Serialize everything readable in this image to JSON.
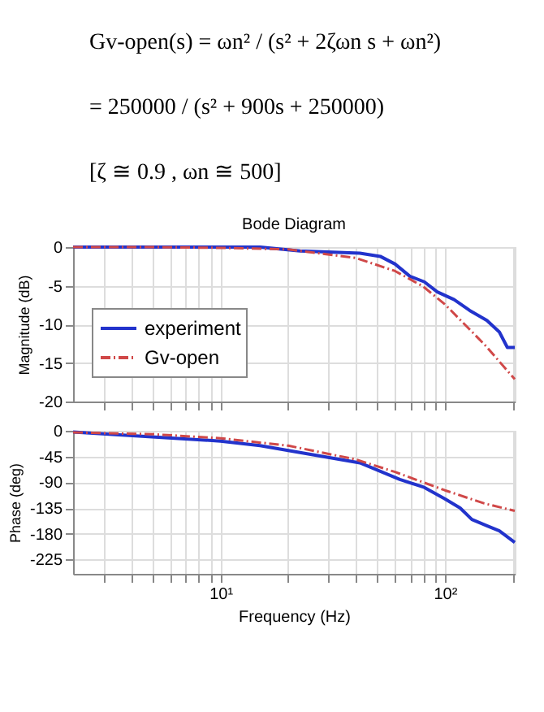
{
  "chart_data": [
    {
      "type": "line",
      "title": "Bode Diagram",
      "ylabel": "Magnitude (dB)",
      "annotations": [
        "Gv-open(s) = ωn² / (s² + 2ζωn s + ωn²)",
        "= 250000 / (s² + 900s + 250000)",
        "[ζ ≅ 0.9 ,  ωn ≅ 500]"
      ],
      "series": [
        {
          "name": "experiment",
          "color": "#2233cc",
          "line_style": "solid",
          "x": [
            2.2,
            10,
            15,
            22.6,
            41.8,
            51.5,
            60,
            70,
            81,
            92.5,
            110,
            129,
            154,
            175,
            190,
            205
          ],
          "values": [
            0,
            0,
            0,
            -0.5,
            -0.8,
            -1.2,
            -2.2,
            -3.8,
            -4.5,
            -5.8,
            -6.8,
            -8.2,
            -9.5,
            -11,
            -13,
            -13
          ]
        },
        {
          "name": "Gv-open",
          "color": "#d04848",
          "line_style": "dashed",
          "x": [
            2.2,
            5,
            10,
            20,
            40,
            60,
            80,
            100,
            150,
            205
          ],
          "values": [
            0,
            0,
            -0.1,
            -0.3,
            -1.4,
            -3.1,
            -5.1,
            -7.4,
            -12.6,
            -17.1
          ]
        }
      ],
      "xlim": [
        2.2,
        205
      ],
      "xticks": [
        {
          "value": 3,
          "label": null
        },
        {
          "value": 4,
          "label": null
        },
        {
          "value": 5,
          "label": null
        },
        {
          "value": 6,
          "label": null
        },
        {
          "value": 7,
          "label": null
        },
        {
          "value": 8,
          "label": null
        },
        {
          "value": 9,
          "label": null
        },
        {
          "value": 10,
          "label": null
        },
        {
          "value": 20,
          "label": null
        },
        {
          "value": 30,
          "label": null
        },
        {
          "value": 40,
          "label": null
        },
        {
          "value": 50,
          "label": null
        },
        {
          "value": 60,
          "label": null
        },
        {
          "value": 70,
          "label": null
        },
        {
          "value": 80,
          "label": null
        },
        {
          "value": 90,
          "label": null
        },
        {
          "value": 100,
          "label": null
        },
        {
          "value": 200,
          "label": null
        }
      ],
      "ylim": [
        -20,
        0
      ],
      "yticks": [
        -20,
        -15,
        -10,
        -5,
        0
      ],
      "log": "x",
      "grid": true,
      "legend": "left",
      "tick_labels": "y"
    },
    {
      "type": "line",
      "xlabel": "Frequency (Hz)",
      "ylabel": "Phase (deg)",
      "series": [
        {
          "color": "#2233cc",
          "line_style": "solid",
          "x": [
            2.2,
            10,
            15,
            22.6,
            41.8,
            63,
            81,
            100,
            117,
            132,
            154,
            175,
            205
          ],
          "values": [
            -2,
            -18,
            -26,
            -38,
            -56,
            -85,
            -99,
            -119,
            -135,
            -155,
            -166,
            -175,
            -195
          ]
        },
        {
          "color": "#d04848",
          "line_style": "dashed",
          "x": [
            2.2,
            5,
            10,
            20,
            40,
            60,
            80,
            100,
            150,
            205
          ],
          "values": [
            -3,
            -6,
            -13,
            -26,
            -50,
            -72,
            -90,
            -104,
            -127,
            -140
          ]
        }
      ],
      "xlim": [
        2.2,
        205
      ],
      "xticks": [
        {
          "value": 3,
          "label": null
        },
        {
          "value": 4,
          "label": null
        },
        {
          "value": 5,
          "label": null
        },
        {
          "value": 6,
          "label": null
        },
        {
          "value": 7,
          "label": null
        },
        {
          "value": 8,
          "label": null
        },
        {
          "value": 9,
          "label": null
        },
        {
          "value": 10,
          "label": "10¹"
        },
        {
          "value": 20,
          "label": null
        },
        {
          "value": 30,
          "label": null
        },
        {
          "value": 40,
          "label": null
        },
        {
          "value": 50,
          "label": null
        },
        {
          "value": 60,
          "label": null
        },
        {
          "value": 70,
          "label": null
        },
        {
          "value": 80,
          "label": null
        },
        {
          "value": 90,
          "label": null
        },
        {
          "value": 100,
          "label": "10²"
        },
        {
          "value": 200,
          "label": null
        }
      ],
      "ylim": [
        -250,
        0
      ],
      "yticks": [
        -225,
        -180,
        -135,
        -90,
        -45,
        0
      ],
      "log": "x",
      "grid": true
    }
  ]
}
